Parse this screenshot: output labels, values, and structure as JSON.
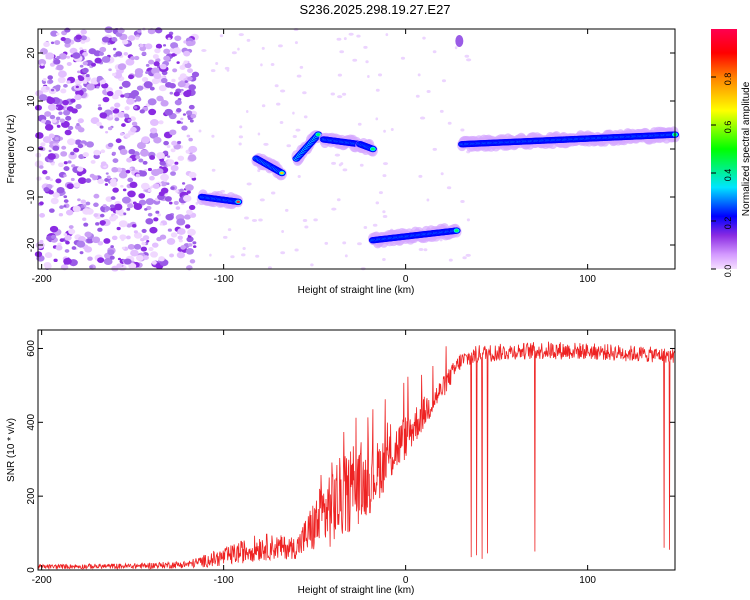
{
  "title": "S236.2025.298.19.27.E27",
  "chart_data": [
    {
      "type": "heatmap",
      "name": "spectrogram",
      "xlabel": "Height of straight line (km)",
      "ylabel": "Frequency (Hz)",
      "xlim": [
        -202,
        148
      ],
      "ylim": [
        -25,
        25
      ],
      "xticks": [
        -200,
        -100,
        0,
        100
      ],
      "yticks": [
        20,
        10,
        0,
        -10,
        -20
      ],
      "colorbar": {
        "label": "Normalized spectral amplitude",
        "range": [
          0,
          1
        ],
        "ticks": [
          0.0,
          0.2,
          0.4,
          0.6,
          0.8
        ],
        "colors": [
          "#f0c8ff",
          "#8a2be2",
          "#0000ff",
          "#00e5ff",
          "#00ff00",
          "#ffff00",
          "#ff8000",
          "#ff0000",
          "#ff0050"
        ]
      },
      "segments": [
        {
          "x": [
            -112,
            -92
          ],
          "y": [
            -10,
            -11
          ]
        },
        {
          "x": [
            -82,
            -68
          ],
          "y": [
            -2,
            -5
          ]
        },
        {
          "x": [
            -60,
            -48
          ],
          "y": [
            -2,
            3
          ]
        },
        {
          "x": [
            -45,
            -25
          ],
          "y": [
            2,
            1
          ]
        },
        {
          "x": [
            -25,
            -18
          ],
          "y": [
            1,
            0
          ]
        },
        {
          "x": [
            -18,
            28
          ],
          "y": [
            -19,
            -17
          ]
        },
        {
          "x": [
            31,
            148
          ],
          "y": [
            1,
            3
          ]
        }
      ],
      "noise_region_x": [
        -202,
        -115
      ]
    },
    {
      "type": "line",
      "name": "snr",
      "xlabel": "Height of straight line (km)",
      "ylabel": "SNR (10 * v/v)",
      "xlim": [
        -202,
        148
      ],
      "ylim": [
        0,
        650
      ],
      "xticks": [
        -200,
        -100,
        0,
        100
      ],
      "yticks": [
        0,
        200,
        400,
        600
      ],
      "color": "#ee2222",
      "envelope": {
        "x": [
          -202,
          -150,
          -120,
          -100,
          -80,
          -60,
          -40,
          -20,
          0,
          10,
          20,
          30,
          40,
          60,
          80,
          100,
          120,
          148
        ],
        "low": [
          3,
          3,
          5,
          10,
          25,
          30,
          60,
          150,
          300,
          380,
          460,
          540,
          560,
          570,
          570,
          570,
          565,
          560
        ],
        "high": [
          15,
          18,
          25,
          60,
          100,
          90,
          300,
          330,
          420,
          470,
          520,
          590,
          610,
          615,
          620,
          615,
          610,
          600
        ]
      },
      "dropouts": [
        {
          "x": 36,
          "y": 35
        },
        {
          "x": 39,
          "y": 40
        },
        {
          "x": 42,
          "y": 30
        },
        {
          "x": 45,
          "y": 45
        },
        {
          "x": 71,
          "y": 50
        },
        {
          "x": 142,
          "y": 60
        },
        {
          "x": 145,
          "y": 55
        }
      ]
    }
  ]
}
